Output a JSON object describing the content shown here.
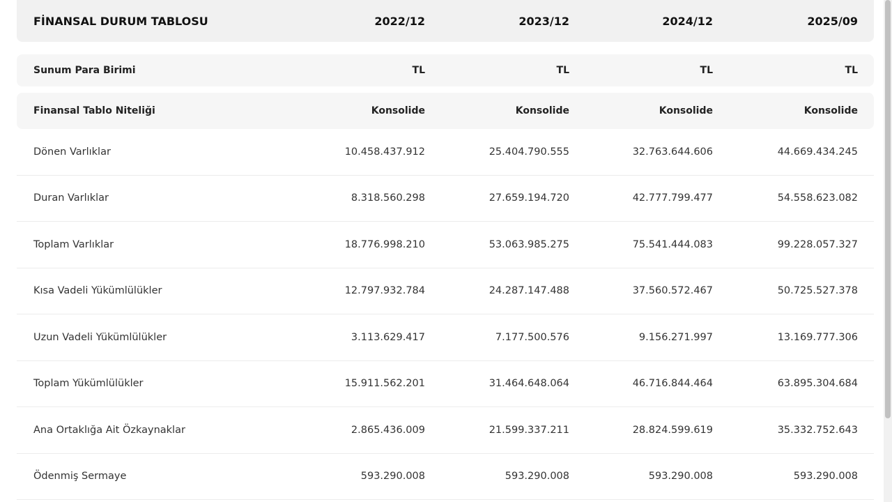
{
  "table": {
    "header": [
      "FİNANSAL DURUM TABLOSU",
      "2022/12",
      "2023/12",
      "2024/12",
      "2025/09"
    ],
    "rows": [
      [
        "Sunum Para Birimi",
        "TL",
        "TL",
        "TL",
        "TL"
      ],
      [
        "Finansal Tablo Niteliği",
        "Konsolide",
        "Konsolide",
        "Konsolide",
        "Konsolide"
      ],
      [
        "Dönen Varlıklar",
        "10.458.437.912",
        "25.404.790.555",
        "32.763.644.606",
        "44.669.434.245"
      ],
      [
        "Duran Varlıklar",
        "8.318.560.298",
        "27.659.194.720",
        "42.777.799.477",
        "54.558.623.082"
      ],
      [
        "Toplam Varlıklar",
        "18.776.998.210",
        "53.063.985.275",
        "75.541.444.083",
        "99.228.057.327"
      ],
      [
        "Kısa Vadeli Yükümlülükler",
        "12.797.932.784",
        "24.287.147.488",
        "37.560.572.467",
        "50.725.527.378"
      ],
      [
        "Uzun Vadeli Yükümlülükler",
        "3.113.629.417",
        "7.177.500.576",
        "9.156.271.997",
        "13.169.777.306"
      ],
      [
        "Toplam Yükümlülükler",
        "15.911.562.201",
        "31.464.648.064",
        "46.716.844.464",
        "63.895.304.684"
      ],
      [
        "Ana Ortaklığa Ait Özkaynaklar",
        "2.865.436.009",
        "21.599.337.211",
        "28.824.599.619",
        "35.332.752.643"
      ],
      [
        "Ödenmiş Sermaye",
        "593.290.008",
        "593.290.008",
        "593.290.008",
        "593.290.008"
      ]
    ]
  }
}
